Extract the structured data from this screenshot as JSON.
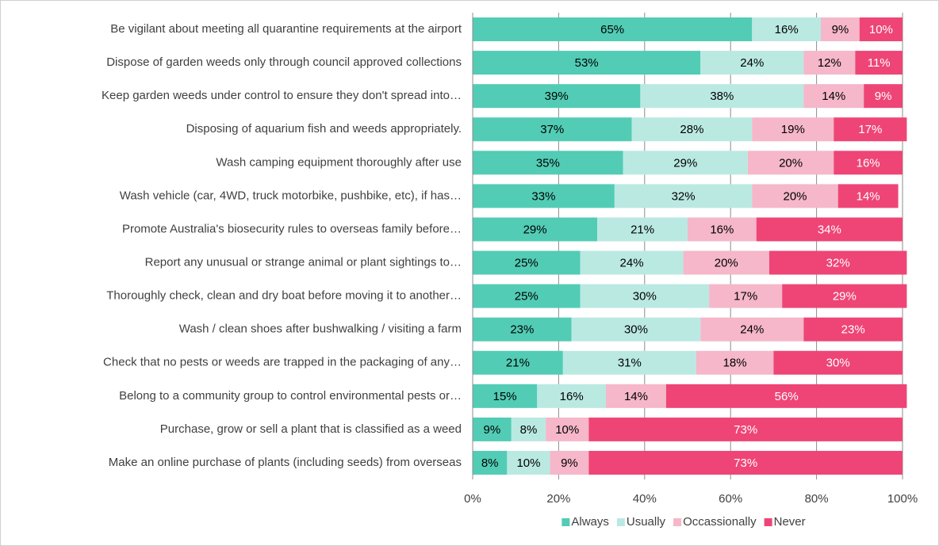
{
  "chart_data": {
    "type": "stacked-bar-horizontal",
    "categories": [
      "Be vigilant about meeting all quarantine requirements at the airport",
      "Dispose of garden weeds only through council approved collections",
      "Keep garden weeds under control to ensure they don't spread into…",
      "Disposing of aquarium fish and weeds appropriately.",
      "Wash camping equipment thoroughly after use",
      "Wash vehicle (car, 4WD, truck motorbike, pushbike, etc), if has…",
      "Promote Australia's biosecurity rules to overseas family before…",
      "Report any unusual or strange animal or plant sightings to…",
      "Thoroughly check, clean and dry boat before moving it to another…",
      "Wash / clean shoes after bushwalking / visiting a farm",
      "Check that no pests or weeds are trapped in the packaging of any…",
      "Belong to a community group to control environmental pests or…",
      "Purchase, grow or sell a plant that is classified as a weed",
      "Make an online purchase of plants (including seeds) from overseas"
    ],
    "series": [
      {
        "name": "Always",
        "color": "#52ccb5",
        "values": [
          65,
          53,
          39,
          37,
          35,
          33,
          29,
          25,
          25,
          23,
          21,
          15,
          9,
          8
        ],
        "value_labels": [
          "65%",
          "53%",
          "39%",
          "37%",
          "35%",
          "33%",
          "29%",
          "25%",
          "25%",
          "23%",
          "21%",
          "15%",
          "9%",
          "8%"
        ]
      },
      {
        "name": "Usually",
        "color": "#bae9e2",
        "values": [
          16,
          24,
          38,
          28,
          29,
          32,
          21,
          24,
          30,
          30,
          31,
          16,
          8,
          10
        ],
        "value_labels": [
          "16%",
          "24%",
          "38%",
          "28%",
          "29%",
          "32%",
          "21%",
          "24%",
          "30%",
          "30%",
          "31%",
          "16%",
          "8%",
          "10%"
        ]
      },
      {
        "name": "Occassionally",
        "color": "#f5b7c9",
        "values": [
          9,
          12,
          14,
          19,
          20,
          20,
          16,
          20,
          17,
          24,
          18,
          14,
          10,
          9
        ],
        "value_labels": [
          "9%",
          "12%",
          "14%",
          "19%",
          "20%",
          "20%",
          "16%",
          "20%",
          "17%",
          "24%",
          "18%",
          "14%",
          "10%",
          "9%"
        ]
      },
      {
        "name": "Never",
        "color": "#ee4576",
        "values": [
          10,
          11,
          9,
          17,
          16,
          14,
          34,
          32,
          29,
          23,
          30,
          56,
          73,
          73
        ],
        "value_labels": [
          "10%",
          "11%",
          "9%",
          "17%",
          "16%",
          "14%",
          "34%",
          "32%",
          "29%",
          "23%",
          "30%",
          "56%",
          "73%",
          "73%"
        ]
      }
    ],
    "xlim": [
      0,
      100
    ],
    "xticks": [
      {
        "value": 0,
        "label": "0%"
      },
      {
        "value": 20,
        "label": "20%"
      },
      {
        "value": 40,
        "label": "40%"
      },
      {
        "value": 60,
        "label": "60%"
      },
      {
        "value": 80,
        "label": "80%"
      },
      {
        "value": 100,
        "label": "100%"
      }
    ],
    "grid": true,
    "legend": "bottom"
  }
}
